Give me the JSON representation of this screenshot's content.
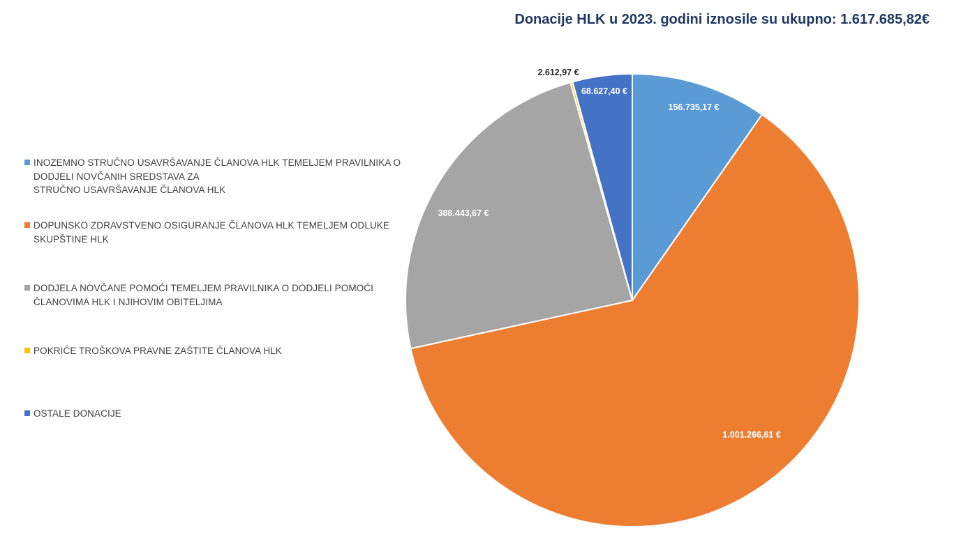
{
  "chart_data": {
    "type": "pie",
    "title": "Donacije HLK u 2023. godini iznosile su ukupno: 1.617.685,82€",
    "legend_position": "left",
    "slices": [
      {
        "label": "INOZEMNO STRUČNO USAVRŠAVANJE ČLANOVA HLK TEMELJEM PRAVILNIKA O\nDODJELI NOVČANIH SREDSTAVA ZA\nSTRUČNO USAVRŠAVANJE ČLANOVA HLK",
        "value": 156735.17,
        "value_label": "156.735,17 €",
        "color": "#5b9bd5",
        "label_color": "#ffffff"
      },
      {
        "label": "DOPUNSKO ZDRAVSTVENO OSIGURANJE ČLANOVA HLK TEMELJEM ODLUKE\nSKUPŠTINE HLK",
        "value": 1001266.61,
        "value_label": "1.001.266,61 €",
        "color": "#ed7d31",
        "label_color": "#ffffff"
      },
      {
        "label": "DODJELA NOVČANE POMOĆI TEMELJEM PRAVILNIKA O DODJELI POMOĆI\nČLANOVIMA HLK I NJIHOVIM OBITELJIMA",
        "value": 388443.67,
        "value_label": "388.443,67 €",
        "color": "#a5a5a5",
        "label_color": "#ffffff"
      },
      {
        "label": "POKRIĆE TROŠKOVA PRAVNE ZAŠTITE ČLANOVA HLK",
        "value": 2612.97,
        "value_label": "2.612,97 €",
        "color": "#ffc000",
        "label_color": "#262626"
      },
      {
        "label": "OSTALE DONACIJE",
        "value": 68627.4,
        "value_label": "68.627,40 €",
        "color": "#4472c4",
        "label_color": "#ffffff"
      }
    ]
  }
}
